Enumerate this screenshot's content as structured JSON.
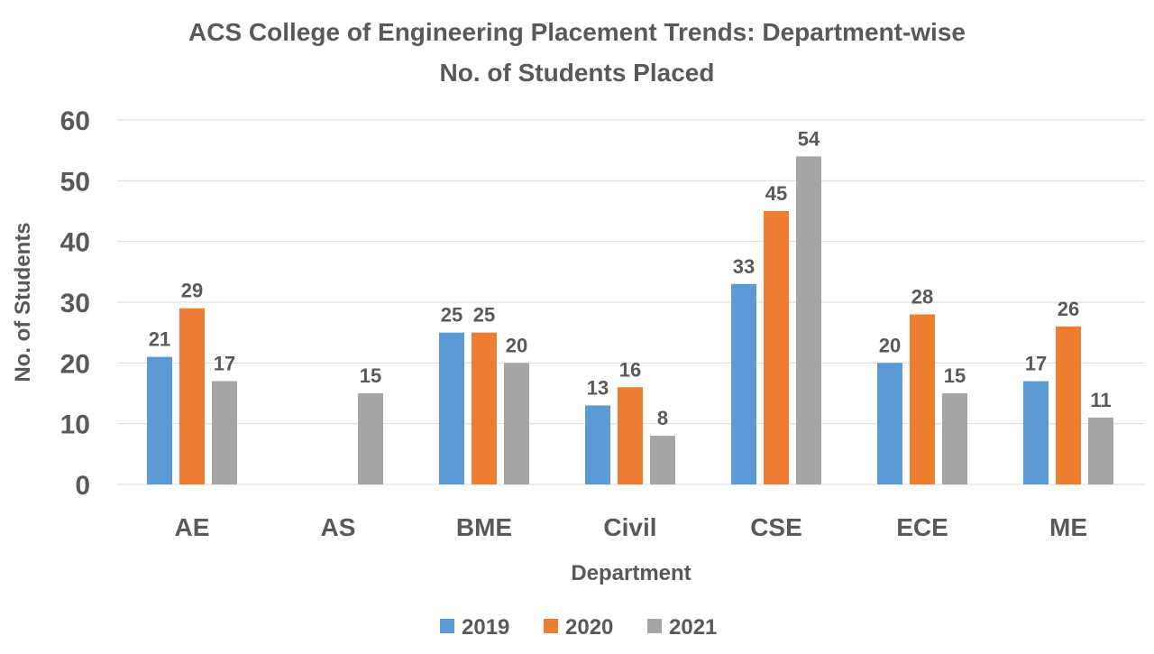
{
  "chart_data": {
    "type": "bar",
    "title": "ACS College of Engineering Placement Trends: Department-wise",
    "subtitle": "No. of Students Placed",
    "xlabel": "Department",
    "ylabel": "No. of Students",
    "ylim": [
      0,
      60
    ],
    "yticks": [
      0,
      10,
      20,
      30,
      40,
      50,
      60
    ],
    "grid": true,
    "legend_position": "bottom",
    "categories": [
      "AE",
      "AS",
      "BME",
      "Civil",
      "CSE",
      "ECE",
      "ME"
    ],
    "series": [
      {
        "name": "2019",
        "color": "#5b9bd5",
        "values": [
          21,
          null,
          25,
          13,
          33,
          20,
          17
        ]
      },
      {
        "name": "2020",
        "color": "#ed7d31",
        "values": [
          29,
          null,
          25,
          16,
          45,
          28,
          26
        ]
      },
      {
        "name": "2021",
        "color": "#a5a5a5",
        "values": [
          17,
          15,
          20,
          8,
          54,
          15,
          11
        ]
      }
    ]
  }
}
